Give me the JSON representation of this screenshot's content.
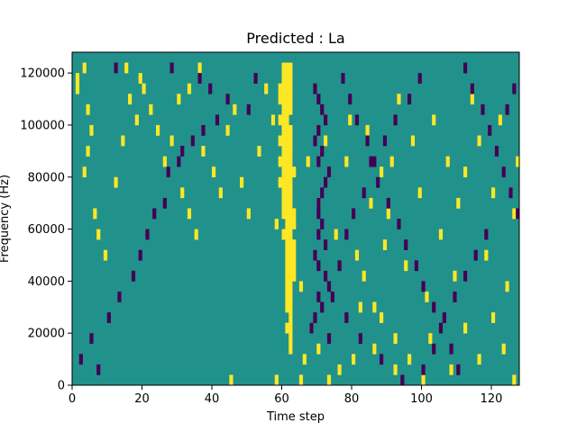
{
  "chart_data": {
    "type": "heatmap",
    "title": "Predicted : La",
    "xlabel": "Time step",
    "ylabel": "Frequency (Hz)",
    "xlim": [
      0,
      128
    ],
    "ylim": [
      0,
      128000
    ],
    "x_ticks": [
      "0",
      "20",
      "40",
      "60",
      "80",
      "100",
      "120"
    ],
    "y_ticks": [
      "0",
      "20000",
      "40000",
      "60000",
      "80000",
      "100000",
      "120000"
    ],
    "grid": false,
    "legend": "none",
    "colormap": "viridis",
    "rows": 64,
    "cols": 128,
    "colors": {
      "background": "#21918c",
      "high": "#fde725",
      "low": "#440154"
    },
    "high_band": {
      "description_note": "",
      "cells": [
        [
          60,
          2
        ],
        [
          61,
          2
        ],
        [
          62,
          2
        ],
        [
          60,
          4
        ],
        [
          61,
          4
        ],
        [
          62,
          4
        ],
        [
          59,
          6
        ],
        [
          60,
          6
        ],
        [
          61,
          6
        ],
        [
          62,
          6
        ],
        [
          59,
          8
        ],
        [
          60,
          8
        ],
        [
          61,
          8
        ],
        [
          62,
          8
        ],
        [
          60,
          10
        ],
        [
          61,
          10
        ],
        [
          62,
          10
        ],
        [
          59,
          12
        ],
        [
          60,
          12
        ],
        [
          61,
          12
        ],
        [
          60,
          14
        ],
        [
          61,
          14
        ],
        [
          62,
          14
        ],
        [
          59,
          16
        ],
        [
          60,
          16
        ],
        [
          61,
          16
        ],
        [
          62,
          16
        ],
        [
          60,
          18
        ],
        [
          61,
          18
        ],
        [
          62,
          18
        ],
        [
          59,
          20
        ],
        [
          60,
          20
        ],
        [
          61,
          20
        ],
        [
          62,
          20
        ],
        [
          60,
          22
        ],
        [
          61,
          22
        ],
        [
          62,
          22
        ],
        [
          63,
          22
        ],
        [
          59,
          24
        ],
        [
          60,
          24
        ],
        [
          61,
          24
        ],
        [
          62,
          24
        ],
        [
          60,
          26
        ],
        [
          61,
          26
        ],
        [
          62,
          26
        ],
        [
          60,
          28
        ],
        [
          61,
          28
        ],
        [
          62,
          28
        ],
        [
          60,
          30
        ],
        [
          61,
          30
        ],
        [
          62,
          30
        ],
        [
          63,
          30
        ],
        [
          61,
          32
        ],
        [
          62,
          32
        ],
        [
          63,
          32
        ],
        [
          60,
          34
        ],
        [
          61,
          34
        ],
        [
          62,
          34
        ],
        [
          61,
          36
        ],
        [
          62,
          36
        ],
        [
          63,
          36
        ],
        [
          61,
          38
        ],
        [
          62,
          38
        ],
        [
          63,
          38
        ],
        [
          61,
          40
        ],
        [
          62,
          40
        ],
        [
          63,
          40
        ],
        [
          61,
          42
        ],
        [
          62,
          42
        ],
        [
          63,
          42
        ],
        [
          61,
          44
        ],
        [
          62,
          44
        ],
        [
          61,
          46
        ],
        [
          62,
          46
        ],
        [
          61,
          48
        ],
        [
          62,
          48
        ],
        [
          62,
          50
        ],
        [
          61,
          52
        ],
        [
          62,
          52
        ],
        [
          62,
          54
        ],
        [
          62,
          56
        ]
      ]
    },
    "cells_high": [
      [
        1,
        4
      ],
      [
        1,
        6
      ],
      [
        3,
        2
      ],
      [
        4,
        10
      ],
      [
        5,
        14
      ],
      [
        4,
        18
      ],
      [
        3,
        22
      ],
      [
        6,
        30
      ],
      [
        7,
        34
      ],
      [
        9,
        38
      ],
      [
        12,
        24
      ],
      [
        14,
        16
      ],
      [
        16,
        8
      ],
      [
        18,
        12
      ],
      [
        20,
        6
      ],
      [
        22,
        10
      ],
      [
        24,
        14
      ],
      [
        26,
        20
      ],
      [
        28,
        16
      ],
      [
        30,
        8
      ],
      [
        31,
        26
      ],
      [
        33,
        30
      ],
      [
        35,
        34
      ],
      [
        37,
        18
      ],
      [
        40,
        22
      ],
      [
        42,
        26
      ],
      [
        44,
        14
      ],
      [
        46,
        10
      ],
      [
        48,
        24
      ],
      [
        50,
        30
      ],
      [
        53,
        18
      ],
      [
        55,
        6
      ],
      [
        57,
        12
      ],
      [
        58,
        32
      ],
      [
        65,
        44
      ],
      [
        67,
        20
      ],
      [
        68,
        52
      ],
      [
        70,
        28
      ],
      [
        72,
        16
      ],
      [
        75,
        34
      ],
      [
        78,
        20
      ],
      [
        79,
        12
      ],
      [
        81,
        38
      ],
      [
        83,
        42
      ],
      [
        84,
        14
      ],
      [
        85,
        28
      ],
      [
        86,
        48
      ],
      [
        88,
        22
      ],
      [
        89,
        36
      ],
      [
        90,
        30
      ],
      [
        91,
        20
      ],
      [
        92,
        54
      ],
      [
        93,
        8
      ],
      [
        95,
        40
      ],
      [
        97,
        16
      ],
      [
        99,
        26
      ],
      [
        101,
        46
      ],
      [
        103,
        12
      ],
      [
        105,
        34
      ],
      [
        107,
        20
      ],
      [
        109,
        42
      ],
      [
        110,
        28
      ],
      [
        112,
        22
      ],
      [
        114,
        8
      ],
      [
        116,
        16
      ],
      [
        118,
        38
      ],
      [
        120,
        26
      ],
      [
        122,
        12
      ],
      [
        124,
        44
      ],
      [
        126,
        30
      ],
      [
        127,
        20
      ],
      [
        15,
        2
      ],
      [
        19,
        4
      ],
      [
        33,
        6
      ],
      [
        36,
        2
      ],
      [
        45,
        62
      ],
      [
        58,
        62
      ],
      [
        65,
        62
      ],
      [
        73,
        62
      ],
      [
        80,
        58
      ],
      [
        86,
        56
      ],
      [
        92,
        60
      ],
      [
        100,
        62
      ],
      [
        108,
        60
      ],
      [
        116,
        58
      ],
      [
        123,
        56
      ],
      [
        126,
        62
      ],
      [
        120,
        50
      ],
      [
        112,
        52
      ],
      [
        102,
        54
      ],
      [
        96,
        58
      ],
      [
        88,
        50
      ],
      [
        82,
        48
      ],
      [
        76,
        60
      ],
      [
        70,
        56
      ],
      [
        66,
        58
      ]
    ],
    "cells_low": [
      [
        12,
        2
      ],
      [
        28,
        2
      ],
      [
        36,
        4
      ],
      [
        39,
        6
      ],
      [
        44,
        8
      ],
      [
        50,
        10
      ],
      [
        52,
        4
      ],
      [
        41,
        12
      ],
      [
        37,
        14
      ],
      [
        34,
        16
      ],
      [
        31,
        18
      ],
      [
        30,
        20
      ],
      [
        27,
        22
      ],
      [
        26,
        28
      ],
      [
        23,
        30
      ],
      [
        21,
        34
      ],
      [
        19,
        38
      ],
      [
        17,
        42
      ],
      [
        13,
        46
      ],
      [
        10,
        50
      ],
      [
        5,
        54
      ],
      [
        2,
        58
      ],
      [
        7,
        60
      ],
      [
        69,
        6
      ],
      [
        70,
        8
      ],
      [
        71,
        10
      ],
      [
        72,
        12
      ],
      [
        70,
        14
      ],
      [
        69,
        16
      ],
      [
        71,
        18
      ],
      [
        70,
        20
      ],
      [
        73,
        22
      ],
      [
        72,
        24
      ],
      [
        71,
        26
      ],
      [
        70,
        28
      ],
      [
        70,
        30
      ],
      [
        71,
        32
      ],
      [
        70,
        34
      ],
      [
        72,
        36
      ],
      [
        69,
        38
      ],
      [
        70,
        40
      ],
      [
        72,
        42
      ],
      [
        73,
        44
      ],
      [
        70,
        46
      ],
      [
        71,
        48
      ],
      [
        69,
        50
      ],
      [
        68,
        52
      ],
      [
        73,
        54
      ],
      [
        77,
        4
      ],
      [
        79,
        8
      ],
      [
        81,
        12
      ],
      [
        84,
        16
      ],
      [
        85,
        20
      ],
      [
        87,
        24
      ],
      [
        90,
        28
      ],
      [
        93,
        32
      ],
      [
        95,
        36
      ],
      [
        98,
        40
      ],
      [
        100,
        44
      ],
      [
        103,
        48
      ],
      [
        105,
        52
      ],
      [
        108,
        56
      ],
      [
        110,
        60
      ],
      [
        112,
        2
      ],
      [
        114,
        6
      ],
      [
        117,
        10
      ],
      [
        119,
        14
      ],
      [
        121,
        18
      ],
      [
        123,
        22
      ],
      [
        125,
        26
      ],
      [
        127,
        30
      ],
      [
        126,
        6
      ],
      [
        124,
        10
      ],
      [
        118,
        34
      ],
      [
        115,
        38
      ],
      [
        112,
        42
      ],
      [
        109,
        46
      ],
      [
        106,
        50
      ],
      [
        103,
        56
      ],
      [
        100,
        60
      ],
      [
        94,
        62
      ],
      [
        88,
        58
      ],
      [
        82,
        54
      ],
      [
        78,
        50
      ],
      [
        74,
        46
      ],
      [
        76,
        40
      ],
      [
        78,
        34
      ],
      [
        80,
        30
      ],
      [
        83,
        26
      ],
      [
        86,
        20
      ],
      [
        89,
        16
      ],
      [
        92,
        12
      ],
      [
        96,
        8
      ],
      [
        99,
        4
      ]
    ],
    "seed": 7
  }
}
